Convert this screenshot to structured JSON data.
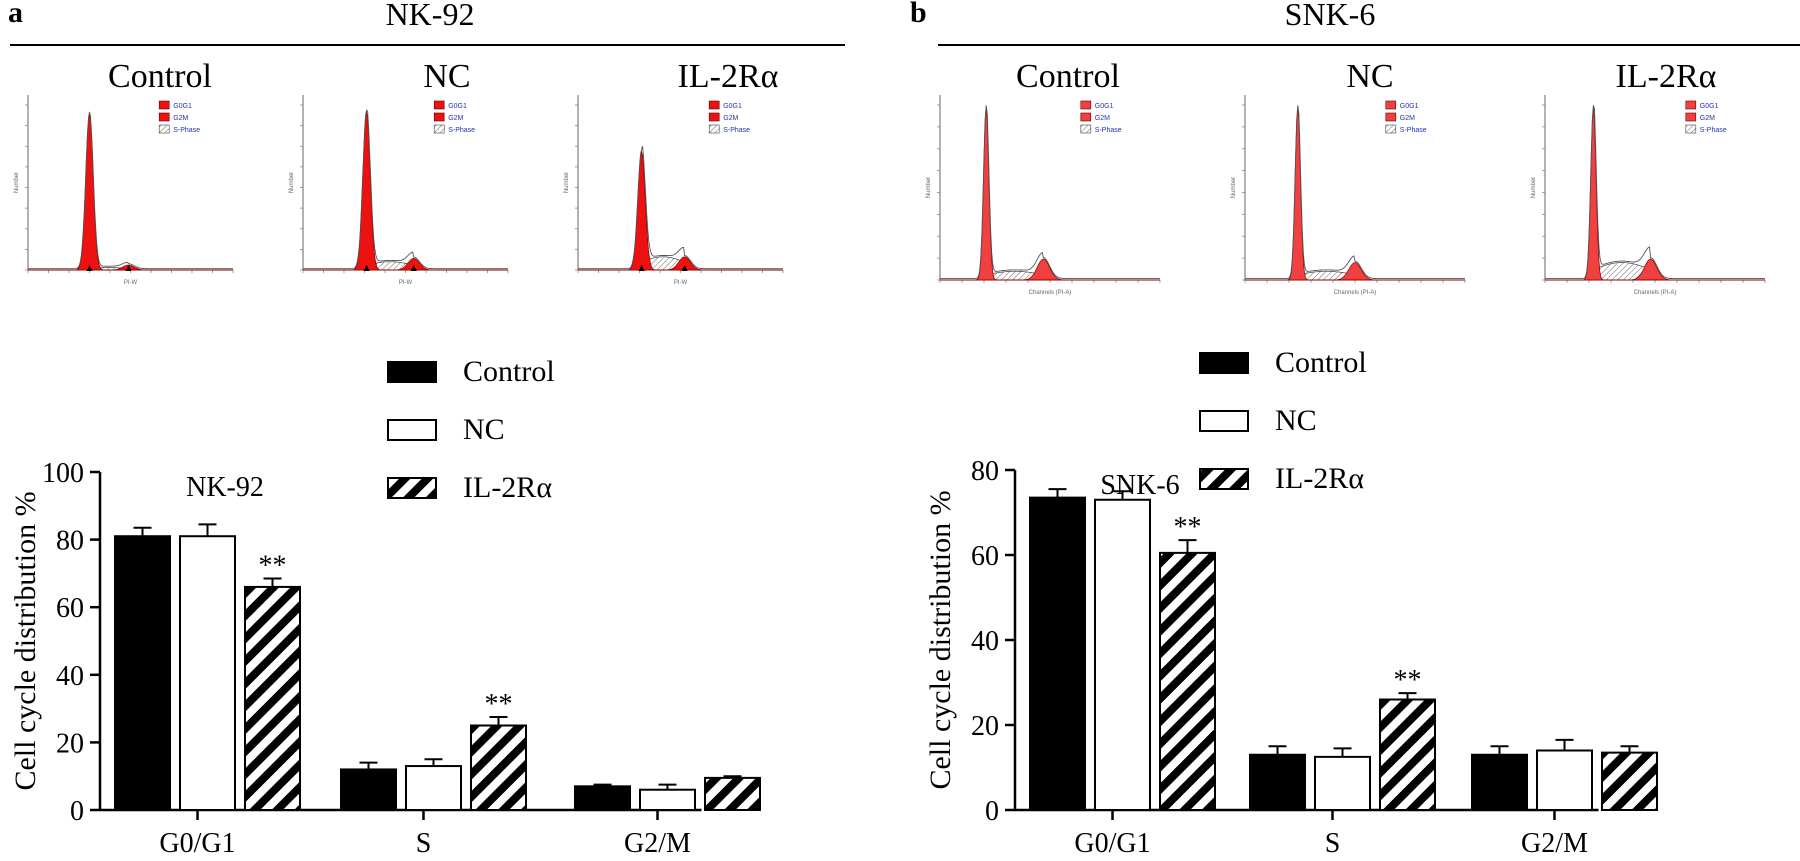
{
  "panels": [
    {
      "letter": "a",
      "title": "NK-92",
      "histograms": [
        {
          "label": "Control",
          "legend": [
            "G0G1",
            "G2M",
            "S-Phase"
          ],
          "xlabel": "PI-W"
        },
        {
          "label": "NC",
          "legend": [
            "G0G1",
            "G2M",
            "S-Phase"
          ],
          "xlabel": "PI-W"
        },
        {
          "label": "IL-2Rα",
          "legend": [
            "G0G1",
            "G2M",
            "S-Phase"
          ],
          "xlabel": "PI-W"
        }
      ]
    },
    {
      "letter": "b",
      "title": "SNK-6",
      "histograms": [
        {
          "label": "Control",
          "legend": [
            "G0G1",
            "G2M",
            "S-Phase"
          ],
          "xlabel": "Channels (PI-A)"
        },
        {
          "label": "NC",
          "legend": [
            "G0G1",
            "G2M",
            "S-Phase"
          ],
          "xlabel": "Channels (PI-A)"
        },
        {
          "label": "IL-2Rα",
          "legend": [
            "G0G1",
            "G2M",
            "S-Phase"
          ],
          "xlabel": "Channels (PI-A)"
        }
      ]
    }
  ],
  "colors": {
    "g0g1_red": "#ee1111",
    "g2m_red": "#ee1111",
    "snk_red": "#f04040",
    "bar_control": "#000000",
    "bar_nc": "#ffffff"
  },
  "chart_data": [
    {
      "type": "bar",
      "title": "NK-92",
      "xlabel": "",
      "ylabel": "Cell cycle distribution %",
      "categories": [
        "G0/G1",
        "S",
        "G2/M"
      ],
      "ylim": [
        0,
        100
      ],
      "yticks": [
        0,
        20,
        40,
        60,
        80,
        100
      ],
      "legend_position": "top-right",
      "series": [
        {
          "name": "Control",
          "values": [
            81,
            12,
            7
          ],
          "errors": [
            2.5,
            2,
            0.5
          ],
          "fill": "solid-black"
        },
        {
          "name": "NC",
          "values": [
            81,
            13,
            6
          ],
          "errors": [
            3.5,
            2,
            1.5
          ],
          "fill": "white"
        },
        {
          "name": "IL-2Rα",
          "values": [
            66,
            25,
            9.5
          ],
          "errors": [
            2.5,
            2.5,
            0.5
          ],
          "fill": "hatched"
        }
      ],
      "annotations": [
        {
          "category": "G0/G1",
          "series": "IL-2Rα",
          "text": "**"
        },
        {
          "category": "S",
          "series": "IL-2Rα",
          "text": "**"
        }
      ]
    },
    {
      "type": "bar",
      "title": "SNK-6",
      "xlabel": "",
      "ylabel": "Cell cycle distribution %",
      "categories": [
        "G0/G1",
        "S",
        "G2/M"
      ],
      "ylim": [
        0,
        80
      ],
      "yticks": [
        0,
        20,
        40,
        60,
        80
      ],
      "legend_position": "top-right",
      "series": [
        {
          "name": "Control",
          "values": [
            73.5,
            13,
            13
          ],
          "errors": [
            2,
            2,
            2
          ],
          "fill": "solid-black"
        },
        {
          "name": "NC",
          "values": [
            73,
            12.5,
            14
          ],
          "errors": [
            2,
            2,
            2.5
          ],
          "fill": "white"
        },
        {
          "name": "IL-2Rα",
          "values": [
            60.5,
            26,
            13.5
          ],
          "errors": [
            3,
            1.5,
            1.5
          ],
          "fill": "hatched"
        }
      ],
      "annotations": [
        {
          "category": "G0/G1",
          "series": "IL-2Rα",
          "text": "**"
        },
        {
          "category": "S",
          "series": "IL-2Rα",
          "text": "**"
        }
      ]
    }
  ]
}
